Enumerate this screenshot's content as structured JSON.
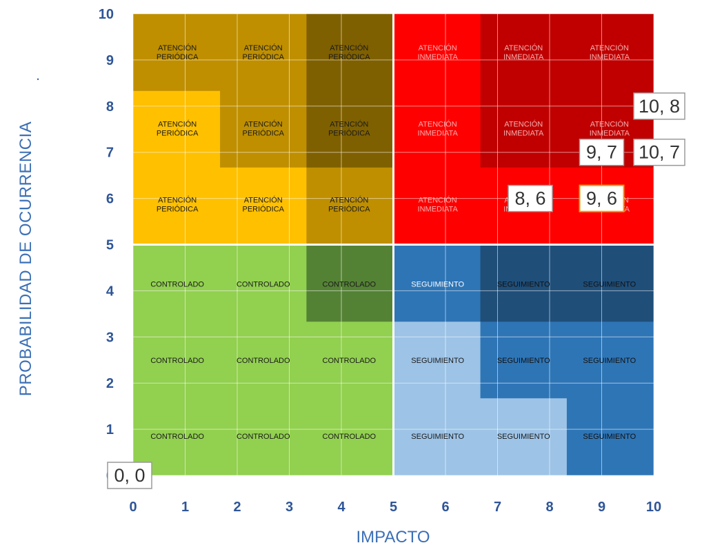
{
  "chart_data": {
    "type": "heatmap",
    "xlabel": "IMPACTO",
    "ylabel": "PROBABILIDAD  DE OCURRENCIA",
    "ylabel_suffix": ".",
    "xlim": [
      0,
      10
    ],
    "ylim": [
      0,
      10
    ],
    "x_ticks": [
      "0",
      "1",
      "2",
      "3",
      "4",
      "5",
      "6",
      "7",
      "8",
      "9",
      "10"
    ],
    "y_ticks": [
      "0",
      "1",
      "2",
      "3",
      "4",
      "5",
      "6",
      "7",
      "8",
      "9",
      "10"
    ],
    "grid": true,
    "colors": {
      "controlado": "#92d050",
      "controlado_dark": "#548235",
      "periodica": "#ffc000",
      "periodica_mid": "#bf8f00",
      "periodica_dark": "#7f6000",
      "inmediata": "#ff0000",
      "inmediata_dark": "#c00000",
      "seguimiento": "#2e75b6",
      "seguimiento_light": "#9dc3e6",
      "seguimiento_dark": "#1f4e79",
      "axis_text": "#2e5597"
    },
    "labels": {
      "controlado": "CONTROLADO",
      "periodica": [
        "ATENCIÓN",
        "PERIÓDICA"
      ],
      "inmediata": [
        "ATENCIÓN",
        "INMEDIATA"
      ],
      "seguimiento": "SEGUIMIENTO"
    },
    "label_columns": [
      0.85,
      2.5,
      4.15,
      5.85,
      7.5,
      9.15
    ],
    "label_rows": [
      0.85,
      2.5,
      4.15,
      5.85,
      7.5,
      9.15
    ],
    "points": [
      {
        "x": 10,
        "y": 8,
        "label": "10, 8"
      },
      {
        "x": 9,
        "y": 7,
        "label": "9, 7"
      },
      {
        "x": 10,
        "y": 7,
        "label": "10, 7"
      },
      {
        "x": 8,
        "y": 6,
        "label": "8, 6"
      },
      {
        "x": 9,
        "y": 6,
        "label": "9, 6",
        "highlight": true
      },
      {
        "x": 0,
        "y": 0,
        "label": "0, 0"
      }
    ]
  }
}
